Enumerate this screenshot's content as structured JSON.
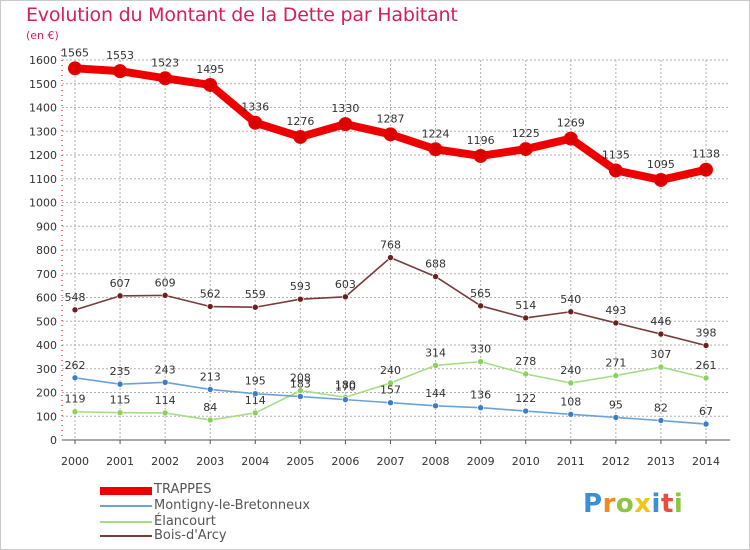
{
  "header": {
    "title": "Evolution du Montant de la Dette par Habitant",
    "unit": "(en €)"
  },
  "logo": {
    "text": "Proxiti"
  },
  "colors": {
    "title": "#d51f5a",
    "grid": "#b0b0b0",
    "axis_red": "#e34b4b"
  },
  "chart_data": {
    "type": "line",
    "title": "Evolution du Montant de la Dette par Habitant",
    "ylabel": "(en €)",
    "xlabel": "",
    "ylim": [
      0,
      1600
    ],
    "yticks": [
      0,
      100,
      200,
      300,
      400,
      500,
      600,
      700,
      800,
      900,
      1000,
      1100,
      1200,
      1300,
      1400,
      1500,
      1600
    ],
    "x": [
      "2000",
      "2001",
      "2002",
      "2003",
      "2004",
      "2005",
      "2006",
      "2007",
      "2008",
      "2009",
      "2010",
      "2011",
      "2012",
      "2013",
      "2014"
    ],
    "grid": true,
    "legend_placement": "bottom-left",
    "series": [
      {
        "name": "TRAPPES",
        "color": "#ee0000",
        "marker": "#dd0000",
        "thick": true,
        "values": [
          1565,
          1553,
          1523,
          1495,
          1336,
          1276,
          1330,
          1287,
          1224,
          1196,
          1225,
          1269,
          1135,
          1095,
          1138
        ]
      },
      {
        "name": "Montigny-le-Bretonneux",
        "color": "#6ba3d6",
        "marker": "#3a7fc2",
        "thick": false,
        "values": [
          262,
          235,
          243,
          213,
          195,
          183,
          170,
          157,
          144,
          136,
          122,
          108,
          95,
          82,
          67
        ]
      },
      {
        "name": "Élancourt",
        "color": "#a6dd84",
        "marker": "#8cd15e",
        "thick": false,
        "values": [
          119,
          115,
          114,
          84,
          114,
          208,
          180,
          240,
          314,
          330,
          278,
          240,
          271,
          307,
          261
        ]
      },
      {
        "name": "Bois-d'Arcy",
        "color": "#7a3b3b",
        "marker": "#6b1f1f",
        "thick": false,
        "values": [
          548,
          607,
          609,
          562,
          559,
          593,
          603,
          768,
          688,
          565,
          514,
          540,
          493,
          446,
          398
        ]
      }
    ]
  }
}
